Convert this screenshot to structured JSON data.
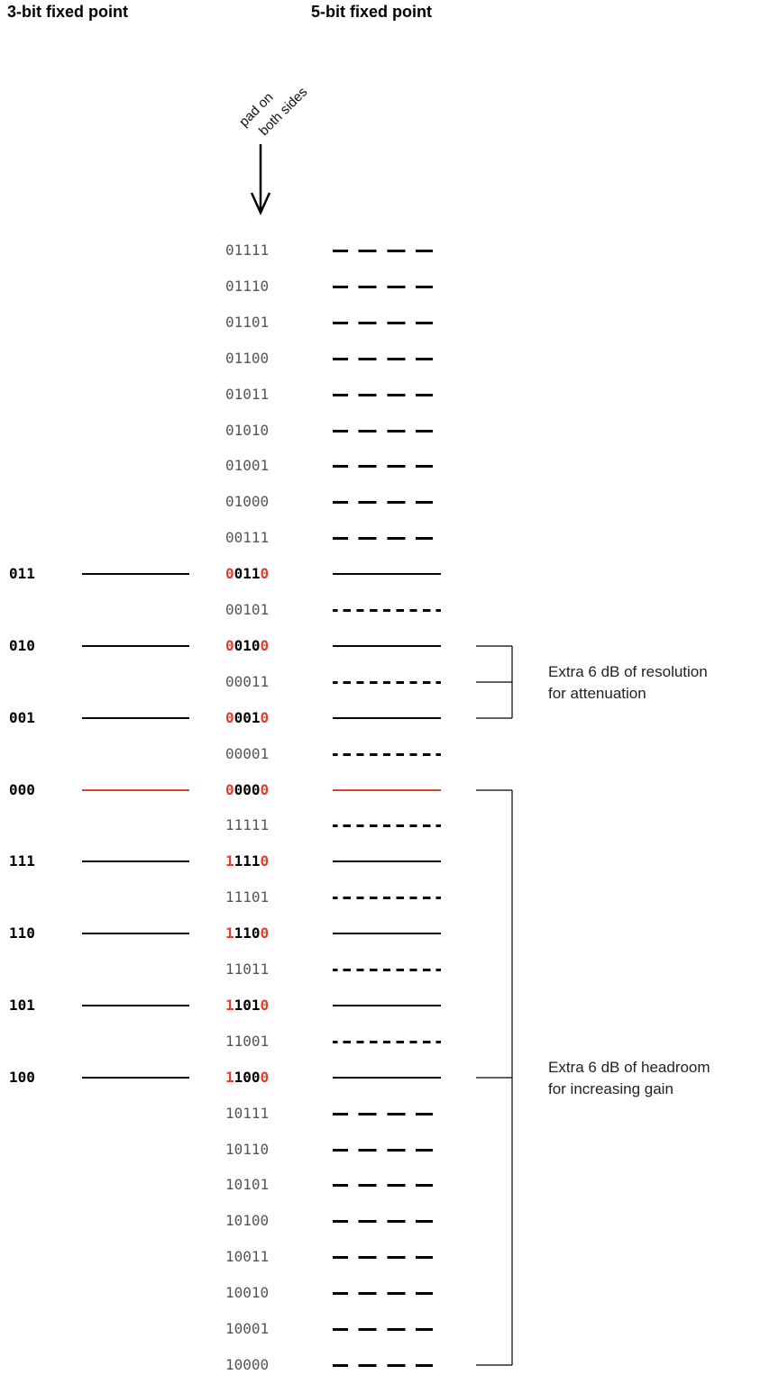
{
  "headers": {
    "three_bit": "3-bit fixed point",
    "five_bit": "5-bit fixed point"
  },
  "pad_note": {
    "line1": "pad on",
    "line2": "both sides"
  },
  "colors": {
    "padding_bits": "#e0402b",
    "zero_level": "#e0402b",
    "lines": "#000000"
  },
  "rows": [
    {
      "five": "01111",
      "kind": "extended"
    },
    {
      "five": "01110",
      "kind": "extended"
    },
    {
      "five": "01101",
      "kind": "extended"
    },
    {
      "five": "01100",
      "kind": "extended"
    },
    {
      "five": "01011",
      "kind": "extended"
    },
    {
      "five": "01010",
      "kind": "extended"
    },
    {
      "five": "01001",
      "kind": "extended"
    },
    {
      "five": "01000",
      "kind": "extended"
    },
    {
      "five": "00111",
      "kind": "extended"
    },
    {
      "five": "00110",
      "three": "011",
      "kind": "major"
    },
    {
      "five": "00101",
      "kind": "half"
    },
    {
      "five": "00100",
      "three": "010",
      "kind": "major"
    },
    {
      "five": "00011",
      "kind": "half"
    },
    {
      "five": "00010",
      "three": "001",
      "kind": "major"
    },
    {
      "five": "00001",
      "kind": "half"
    },
    {
      "five": "00000",
      "three": "000",
      "kind": "zero"
    },
    {
      "five": "11111",
      "kind": "half"
    },
    {
      "five": "11110",
      "three": "111",
      "kind": "major"
    },
    {
      "five": "11101",
      "kind": "half"
    },
    {
      "five": "11100",
      "three": "110",
      "kind": "major"
    },
    {
      "five": "11011",
      "kind": "half"
    },
    {
      "five": "11010",
      "three": "101",
      "kind": "major"
    },
    {
      "five": "11001",
      "kind": "half"
    },
    {
      "five": "11000",
      "three": "100",
      "kind": "major"
    },
    {
      "five": "10111",
      "kind": "extended"
    },
    {
      "five": "10110",
      "kind": "extended"
    },
    {
      "five": "10101",
      "kind": "extended"
    },
    {
      "five": "10100",
      "kind": "extended"
    },
    {
      "five": "10011",
      "kind": "extended"
    },
    {
      "five": "10010",
      "kind": "extended"
    },
    {
      "five": "10001",
      "kind": "extended"
    },
    {
      "five": "10000",
      "kind": "extended"
    }
  ],
  "annotations": {
    "attenuation": {
      "line1": "Extra 6 dB of resolution",
      "line2": "for attenuation"
    },
    "headroom": {
      "line1": "Extra 6 dB of headroom",
      "line2": "for increasing gain"
    }
  }
}
